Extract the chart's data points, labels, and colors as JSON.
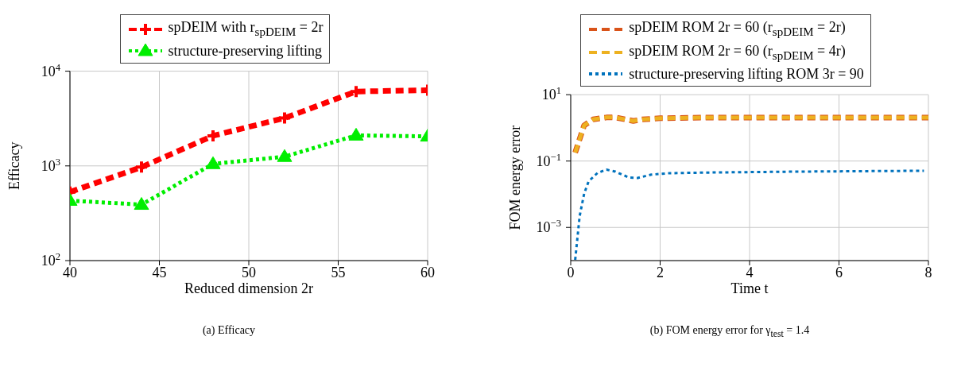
{
  "chart_data": [
    {
      "type": "line",
      "title": "(a) Efficacy",
      "xlabel": "Reduced dimension 2r",
      "ylabel": "Efficacy",
      "x": [
        40,
        44,
        48,
        52,
        56,
        60
      ],
      "series": [
        {
          "name": "spDEIM with r$_{spDEIM}$ = 2r",
          "color": "#ff0000",
          "marker": "cross",
          "line_style": "dashed",
          "values": [
            530,
            970,
            2080,
            3200,
            6100,
            6300
          ]
        },
        {
          "name": "structure-preserving lifting",
          "color": "#00ee00",
          "marker": "triangle",
          "line_style": "dotted",
          "values": [
            430,
            390,
            1050,
            1250,
            2100,
            2050
          ]
        }
      ],
      "log": "y",
      "xlim": [
        40,
        60
      ],
      "xticks": [
        40,
        45,
        50,
        55,
        60
      ],
      "ylim": [
        100,
        10000
      ],
      "yticks": [
        {
          "value": 100,
          "label": "10$^{2}$"
        },
        {
          "value": 1000,
          "label": "10$^{3}$"
        },
        {
          "value": 10000,
          "label": "10$^{4}$"
        }
      ],
      "grid": true,
      "legend": "top"
    },
    {
      "type": "line",
      "title": "(b) FOM energy error for γ$_{test}$ = 1.4",
      "xlabel": "Time t",
      "ylabel": "FOM energy error",
      "series": [
        {
          "name": "spDEIM ROM 2r = 60 (r$_{spDEIM}$ = 2r)",
          "color": "#d95319",
          "line_style": "dashed",
          "x": [
            0.1,
            0.3,
            0.5,
            0.8,
            1.0,
            1.4,
            1.6,
            2.0,
            3.0,
            5.0,
            8.0
          ],
          "values": [
            0.18,
            1.19,
            1.8,
            2.06,
            2.06,
            1.62,
            1.8,
            1.95,
            2.05,
            2.05,
            2.05
          ]
        },
        {
          "name": "spDEIM ROM 2r = 60 (r$_{spDEIM}$ = 4r)",
          "color": "#edb120",
          "line_style": "dashed",
          "x": [
            0.1,
            0.3,
            0.5,
            0.8,
            1.0,
            1.4,
            1.6,
            2.0,
            3.0,
            5.0,
            8.0
          ],
          "values": [
            0.18,
            1.19,
            1.8,
            2.06,
            2.06,
            1.62,
            1.8,
            1.95,
            2.05,
            2.05,
            2.05
          ]
        },
        {
          "name": "structure-preserving lifting ROM 3r = 90",
          "color": "#0072bd",
          "line_style": "dotted",
          "x": [
            0.1,
            0.15,
            0.2,
            0.3,
            0.4,
            0.6,
            0.8,
            1.0,
            1.3,
            1.5,
            1.8,
            2.2,
            3.0,
            5.0,
            7.9
          ],
          "values": [
            0.000105,
            0.00048,
            0.0022,
            0.0104,
            0.0245,
            0.044,
            0.055,
            0.048,
            0.032,
            0.031,
            0.039,
            0.043,
            0.045,
            0.048,
            0.051
          ]
        }
      ],
      "log": "y",
      "xlim": [
        0,
        8
      ],
      "xticks": [
        0,
        2,
        4,
        6,
        8
      ],
      "ylim": [
        0.0001,
        10
      ],
      "yticks": [
        {
          "value": 10,
          "label": "10$^{1}$"
        },
        {
          "value": 0.1,
          "label": "10$^{−1}$"
        },
        {
          "value": 0.001,
          "label": "10$^{−3}$"
        }
      ],
      "grid": true,
      "legend": "top"
    }
  ]
}
